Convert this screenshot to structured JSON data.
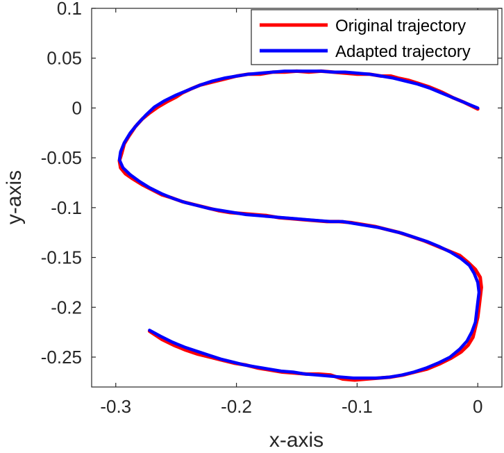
{
  "chart_data": {
    "type": "line",
    "title": "",
    "xlabel": "x-axis",
    "ylabel": "y-axis",
    "xlim": [
      -0.32,
      0.02
    ],
    "ylim": [
      -0.28,
      0.1
    ],
    "xticks": [
      -0.3,
      -0.2,
      -0.1,
      0
    ],
    "xtick_labels": [
      "-0.3",
      "-0.2",
      "-0.1",
      "0"
    ],
    "yticks": [
      0.1,
      0.05,
      0,
      -0.05,
      -0.1,
      -0.15,
      -0.2,
      -0.25
    ],
    "ytick_labels": [
      "0.1",
      "0.05",
      "0",
      "-0.05",
      "-0.1",
      "-0.15",
      "-0.2",
      "-0.25"
    ],
    "grid": false,
    "legend_position": "top-right",
    "series": [
      {
        "name": "Original trajectory",
        "color": "#ff0000",
        "points": [
          [
            0.0,
            -0.001
          ],
          [
            -0.005,
            0.002
          ],
          [
            -0.012,
            0.006
          ],
          [
            -0.02,
            0.01
          ],
          [
            -0.03,
            0.016
          ],
          [
            -0.04,
            0.021
          ],
          [
            -0.05,
            0.025
          ],
          [
            -0.058,
            0.028
          ],
          [
            -0.066,
            0.03
          ],
          [
            -0.072,
            0.032
          ],
          [
            -0.08,
            0.032
          ],
          [
            -0.09,
            0.034
          ],
          [
            -0.1,
            0.034
          ],
          [
            -0.11,
            0.035
          ],
          [
            -0.12,
            0.036
          ],
          [
            -0.13,
            0.037
          ],
          [
            -0.14,
            0.036
          ],
          [
            -0.15,
            0.037
          ],
          [
            -0.16,
            0.036
          ],
          [
            -0.17,
            0.036
          ],
          [
            -0.18,
            0.034
          ],
          [
            -0.19,
            0.034
          ],
          [
            -0.2,
            0.032
          ],
          [
            -0.21,
            0.029
          ],
          [
            -0.22,
            0.026
          ],
          [
            -0.23,
            0.023
          ],
          [
            -0.238,
            0.019
          ],
          [
            -0.245,
            0.015
          ],
          [
            -0.25,
            0.011
          ],
          [
            -0.258,
            0.006
          ],
          [
            -0.265,
            0.001
          ],
          [
            -0.272,
            -0.005
          ],
          [
            -0.278,
            -0.011
          ],
          [
            -0.284,
            -0.019
          ],
          [
            -0.289,
            -0.028
          ],
          [
            -0.293,
            -0.036
          ],
          [
            -0.295,
            -0.045
          ],
          [
            -0.297,
            -0.053
          ],
          [
            -0.296,
            -0.06
          ],
          [
            -0.292,
            -0.066
          ],
          [
            -0.286,
            -0.071
          ],
          [
            -0.278,
            -0.077
          ],
          [
            -0.27,
            -0.082
          ],
          [
            -0.262,
            -0.087
          ],
          [
            -0.254,
            -0.09
          ],
          [
            -0.245,
            -0.094
          ],
          [
            -0.235,
            -0.097
          ],
          [
            -0.225,
            -0.1
          ],
          [
            -0.215,
            -0.103
          ],
          [
            -0.205,
            -0.105
          ],
          [
            -0.195,
            -0.106
          ],
          [
            -0.185,
            -0.107
          ],
          [
            -0.175,
            -0.108
          ],
          [
            -0.165,
            -0.11
          ],
          [
            -0.155,
            -0.111
          ],
          [
            -0.145,
            -0.112
          ],
          [
            -0.135,
            -0.113
          ],
          [
            -0.125,
            -0.114
          ],
          [
            -0.115,
            -0.114
          ],
          [
            -0.105,
            -0.115
          ],
          [
            -0.095,
            -0.117
          ],
          [
            -0.085,
            -0.119
          ],
          [
            -0.075,
            -0.122
          ],
          [
            -0.065,
            -0.125
          ],
          [
            -0.055,
            -0.129
          ],
          [
            -0.045,
            -0.133
          ],
          [
            -0.035,
            -0.138
          ],
          [
            -0.025,
            -0.143
          ],
          [
            -0.015,
            -0.148
          ],
          [
            -0.008,
            -0.155
          ],
          [
            -0.002,
            -0.162
          ],
          [
            0.002,
            -0.17
          ],
          [
            0.003,
            -0.18
          ],
          [
            0.002,
            -0.19
          ],
          [
            0.001,
            -0.2
          ],
          [
            0.0,
            -0.21
          ],
          [
            -0.002,
            -0.22
          ],
          [
            -0.004,
            -0.23
          ],
          [
            -0.008,
            -0.238
          ],
          [
            -0.014,
            -0.245
          ],
          [
            -0.022,
            -0.251
          ],
          [
            -0.032,
            -0.257
          ],
          [
            -0.042,
            -0.262
          ],
          [
            -0.052,
            -0.265
          ],
          [
            -0.062,
            -0.268
          ],
          [
            -0.072,
            -0.27
          ],
          [
            -0.082,
            -0.271
          ],
          [
            -0.092,
            -0.272
          ],
          [
            -0.102,
            -0.273
          ],
          [
            -0.112,
            -0.272
          ],
          [
            -0.122,
            -0.268
          ],
          [
            -0.132,
            -0.267
          ],
          [
            -0.142,
            -0.267
          ],
          [
            -0.152,
            -0.266
          ],
          [
            -0.162,
            -0.265
          ],
          [
            -0.172,
            -0.263
          ],
          [
            -0.182,
            -0.261
          ],
          [
            -0.192,
            -0.258
          ],
          [
            -0.202,
            -0.256
          ],
          [
            -0.212,
            -0.253
          ],
          [
            -0.222,
            -0.25
          ],
          [
            -0.232,
            -0.247
          ],
          [
            -0.242,
            -0.243
          ],
          [
            -0.252,
            -0.238
          ],
          [
            -0.262,
            -0.232
          ],
          [
            -0.272,
            -0.224
          ]
        ]
      },
      {
        "name": "Adapted trajectory",
        "color": "#0000ff",
        "points": [
          [
            0.0,
            0.0
          ],
          [
            -0.01,
            0.005
          ],
          [
            -0.02,
            0.01
          ],
          [
            -0.03,
            0.015
          ],
          [
            -0.04,
            0.02
          ],
          [
            -0.05,
            0.024
          ],
          [
            -0.06,
            0.027
          ],
          [
            -0.07,
            0.03
          ],
          [
            -0.08,
            0.032
          ],
          [
            -0.09,
            0.034
          ],
          [
            -0.1,
            0.035
          ],
          [
            -0.11,
            0.036
          ],
          [
            -0.12,
            0.036
          ],
          [
            -0.13,
            0.037
          ],
          [
            -0.14,
            0.037
          ],
          [
            -0.15,
            0.037
          ],
          [
            -0.16,
            0.037
          ],
          [
            -0.17,
            0.036
          ],
          [
            -0.18,
            0.035
          ],
          [
            -0.19,
            0.034
          ],
          [
            -0.2,
            0.032
          ],
          [
            -0.21,
            0.03
          ],
          [
            -0.22,
            0.027
          ],
          [
            -0.23,
            0.023
          ],
          [
            -0.24,
            0.018
          ],
          [
            -0.25,
            0.013
          ],
          [
            -0.26,
            0.007
          ],
          [
            -0.268,
            0.001
          ],
          [
            -0.275,
            -0.007
          ],
          [
            -0.282,
            -0.016
          ],
          [
            -0.288,
            -0.025
          ],
          [
            -0.293,
            -0.035
          ],
          [
            -0.296,
            -0.044
          ],
          [
            -0.297,
            -0.052
          ],
          [
            -0.294,
            -0.06
          ],
          [
            -0.288,
            -0.067
          ],
          [
            -0.28,
            -0.074
          ],
          [
            -0.272,
            -0.08
          ],
          [
            -0.262,
            -0.086
          ],
          [
            -0.252,
            -0.091
          ],
          [
            -0.242,
            -0.095
          ],
          [
            -0.232,
            -0.098
          ],
          [
            -0.222,
            -0.101
          ],
          [
            -0.212,
            -0.103
          ],
          [
            -0.202,
            -0.105
          ],
          [
            -0.192,
            -0.107
          ],
          [
            -0.182,
            -0.108
          ],
          [
            -0.172,
            -0.109
          ],
          [
            -0.162,
            -0.11
          ],
          [
            -0.152,
            -0.111
          ],
          [
            -0.142,
            -0.112
          ],
          [
            -0.132,
            -0.113
          ],
          [
            -0.122,
            -0.114
          ],
          [
            -0.112,
            -0.114
          ],
          [
            -0.102,
            -0.116
          ],
          [
            -0.092,
            -0.118
          ],
          [
            -0.082,
            -0.12
          ],
          [
            -0.072,
            -0.123
          ],
          [
            -0.062,
            -0.126
          ],
          [
            -0.052,
            -0.13
          ],
          [
            -0.042,
            -0.134
          ],
          [
            -0.032,
            -0.139
          ],
          [
            -0.022,
            -0.145
          ],
          [
            -0.014,
            -0.151
          ],
          [
            -0.007,
            -0.158
          ],
          [
            -0.003,
            -0.166
          ],
          [
            0.0,
            -0.175
          ],
          [
            0.001,
            -0.185
          ],
          [
            0.0,
            -0.195
          ],
          [
            -0.001,
            -0.205
          ],
          [
            -0.002,
            -0.215
          ],
          [
            -0.005,
            -0.225
          ],
          [
            -0.009,
            -0.234
          ],
          [
            -0.015,
            -0.242
          ],
          [
            -0.023,
            -0.25
          ],
          [
            -0.033,
            -0.256
          ],
          [
            -0.043,
            -0.261
          ],
          [
            -0.053,
            -0.265
          ],
          [
            -0.063,
            -0.268
          ],
          [
            -0.073,
            -0.27
          ],
          [
            -0.083,
            -0.271
          ],
          [
            -0.093,
            -0.271
          ],
          [
            -0.103,
            -0.271
          ],
          [
            -0.113,
            -0.27
          ],
          [
            -0.123,
            -0.269
          ],
          [
            -0.133,
            -0.268
          ],
          [
            -0.143,
            -0.267
          ],
          [
            -0.153,
            -0.265
          ],
          [
            -0.163,
            -0.264
          ],
          [
            -0.173,
            -0.262
          ],
          [
            -0.183,
            -0.26
          ],
          [
            -0.193,
            -0.258
          ],
          [
            -0.203,
            -0.255
          ],
          [
            -0.213,
            -0.252
          ],
          [
            -0.223,
            -0.248
          ],
          [
            -0.233,
            -0.244
          ],
          [
            -0.243,
            -0.24
          ],
          [
            -0.253,
            -0.235
          ],
          [
            -0.263,
            -0.229
          ],
          [
            -0.272,
            -0.223
          ]
        ]
      }
    ]
  }
}
